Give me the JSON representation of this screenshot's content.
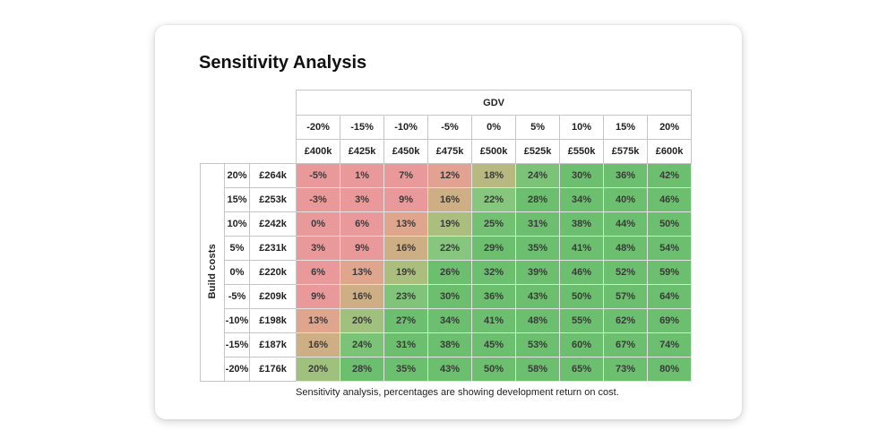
{
  "card": {
    "title": "Sensitivity Analysis",
    "caption": "Sensitivity analysis, percentages are showing development return on cost."
  },
  "chart_data": {
    "type": "heatmap",
    "title": "Sensitivity Analysis",
    "col_header": {
      "label": "GDV",
      "pct": [
        "-20%",
        "-15%",
        "-10%",
        "-5%",
        "0%",
        "5%",
        "10%",
        "15%",
        "20%"
      ],
      "values": [
        "£400k",
        "£425k",
        "£450k",
        "£475k",
        "£500k",
        "£525k",
        "£550k",
        "£575k",
        "£600k"
      ]
    },
    "row_header": {
      "label": "Build costs",
      "pct": [
        "20%",
        "15%",
        "10%",
        "5%",
        "0%",
        "-5%",
        "-10%",
        "-15%",
        "-20%"
      ],
      "values": [
        "£264k",
        "£253k",
        "£242k",
        "£231k",
        "£220k",
        "£209k",
        "£198k",
        "£187k",
        "£176k"
      ]
    },
    "cells_pct": [
      [
        -5,
        1,
        7,
        12,
        18,
        24,
        30,
        36,
        42
      ],
      [
        -3,
        3,
        9,
        16,
        22,
        28,
        34,
        40,
        46
      ],
      [
        0,
        6,
        13,
        19,
        25,
        31,
        38,
        44,
        50
      ],
      [
        3,
        9,
        16,
        22,
        29,
        35,
        41,
        48,
        54
      ],
      [
        6,
        13,
        19,
        26,
        32,
        39,
        46,
        52,
        59
      ],
      [
        9,
        16,
        23,
        30,
        36,
        43,
        50,
        57,
        64
      ],
      [
        13,
        20,
        27,
        34,
        41,
        48,
        55,
        62,
        69
      ],
      [
        16,
        24,
        31,
        38,
        45,
        53,
        60,
        67,
        74
      ],
      [
        20,
        28,
        35,
        43,
        50,
        58,
        65,
        73,
        80
      ]
    ],
    "cell_suffix": "%",
    "color_scale": {
      "description": "red-to-green heatmap; fully red at/below 10, fully green at/above 26, linear blend between stops",
      "stops": [
        [
          10,
          "#EA999A"
        ],
        [
          13,
          "#DFA58D"
        ],
        [
          16,
          "#CDAE85"
        ],
        [
          19,
          "#ACBE7E"
        ],
        [
          22,
          "#87C67F"
        ],
        [
          26,
          "#6CBF6E"
        ]
      ]
    },
    "colors": {
      "header_border": "#c6c6c6",
      "data_border": "#e3e3e3",
      "text": "#3a3a3a"
    }
  }
}
